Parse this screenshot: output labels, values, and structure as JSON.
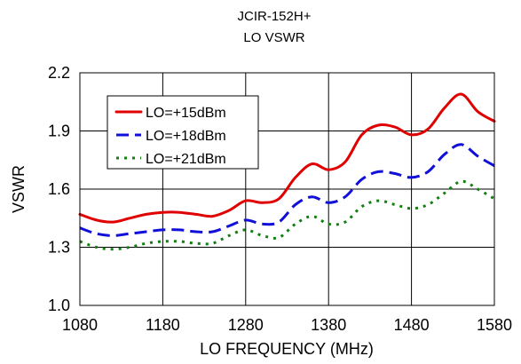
{
  "chart_data": {
    "type": "line",
    "title": "JCIR-152H+",
    "subtitle": "LO VSWR",
    "xlabel": "LO FREQUENCY (MHz)",
    "ylabel": "VSWR",
    "xlim": [
      1080,
      1580
    ],
    "ylim": [
      1.0,
      2.2
    ],
    "xticks": [
      1080,
      1180,
      1280,
      1380,
      1480,
      1580
    ],
    "yticks": [
      1.0,
      1.3,
      1.6,
      1.9,
      2.2
    ],
    "xtick_labels": [
      "1080",
      "1180",
      "1280",
      "1380",
      "1480",
      "1580"
    ],
    "ytick_labels": [
      "1.0",
      "1.3",
      "1.6",
      "1.9",
      "2.2"
    ],
    "grid": true,
    "legend_position": "top-left",
    "series": [
      {
        "name": "LO=+15dBm",
        "color": "#e00000",
        "dash": "solid",
        "x": [
          1080,
          1100,
          1120,
          1140,
          1160,
          1180,
          1200,
          1220,
          1240,
          1260,
          1280,
          1300,
          1320,
          1340,
          1360,
          1380,
          1400,
          1420,
          1440,
          1460,
          1480,
          1500,
          1520,
          1540,
          1560,
          1580
        ],
        "y": [
          1.47,
          1.44,
          1.43,
          1.45,
          1.47,
          1.48,
          1.48,
          1.47,
          1.46,
          1.49,
          1.54,
          1.53,
          1.55,
          1.66,
          1.73,
          1.7,
          1.74,
          1.88,
          1.93,
          1.92,
          1.88,
          1.91,
          2.02,
          2.09,
          2.0,
          1.95
        ]
      },
      {
        "name": "LO=+18dBm",
        "color": "#1010d8",
        "dash": "dashed",
        "x": [
          1080,
          1100,
          1120,
          1140,
          1160,
          1180,
          1200,
          1220,
          1240,
          1260,
          1280,
          1300,
          1320,
          1340,
          1360,
          1380,
          1400,
          1420,
          1440,
          1460,
          1480,
          1500,
          1520,
          1540,
          1560,
          1580
        ],
        "y": [
          1.4,
          1.37,
          1.36,
          1.37,
          1.38,
          1.39,
          1.39,
          1.38,
          1.38,
          1.41,
          1.44,
          1.42,
          1.43,
          1.52,
          1.56,
          1.53,
          1.56,
          1.65,
          1.69,
          1.68,
          1.66,
          1.69,
          1.78,
          1.83,
          1.77,
          1.72
        ]
      },
      {
        "name": "LO=+21dBm",
        "color": "#108010",
        "dash": "dotted",
        "x": [
          1080,
          1100,
          1120,
          1140,
          1160,
          1180,
          1200,
          1220,
          1240,
          1260,
          1280,
          1300,
          1320,
          1340,
          1360,
          1380,
          1400,
          1420,
          1440,
          1460,
          1480,
          1500,
          1520,
          1540,
          1560,
          1580
        ],
        "y": [
          1.33,
          1.3,
          1.29,
          1.3,
          1.32,
          1.33,
          1.33,
          1.32,
          1.32,
          1.36,
          1.39,
          1.36,
          1.35,
          1.42,
          1.46,
          1.42,
          1.43,
          1.51,
          1.54,
          1.52,
          1.5,
          1.52,
          1.58,
          1.64,
          1.6,
          1.55
        ]
      }
    ]
  }
}
